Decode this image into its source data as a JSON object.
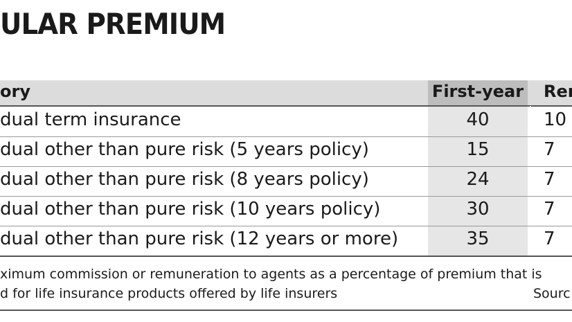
{
  "header": {
    "title": "ULAR PREMIUM"
  },
  "table": {
    "columns": [
      "ory",
      "First-year",
      "Ren"
    ],
    "rows": [
      [
        "dual term insurance",
        40,
        "10"
      ],
      [
        "dual other than pure risk (5 years policy)",
        15,
        "7"
      ],
      [
        "dual other than pure risk (8 years policy)",
        24,
        "7"
      ],
      [
        "dual other than pure risk (10 years policy)",
        30,
        "7"
      ],
      [
        "dual other than pure risk (12 years or more)",
        35,
        "7"
      ]
    ]
  },
  "footnote": {
    "lines": [
      "ximum commission or remuneration to agents as a percentage of premium that is",
      "d for life insurance products offered by life insurers"
    ],
    "source": "Sourc"
  }
}
